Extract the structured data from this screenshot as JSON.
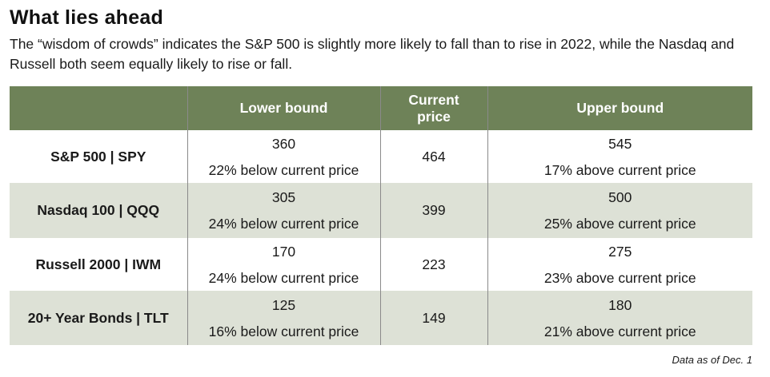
{
  "title": "What lies ahead",
  "subtitle": "The “wisdom of crowds” indicates the S&P 500 is slightly more likely to fall than to rise in 2022, while the Nasdaq and Russell both seem equally likely to rise or fall.",
  "table": {
    "headers": [
      "",
      "Lower bound",
      "Current price",
      "Upper bound"
    ],
    "rows": [
      {
        "name": "S&P 500 | SPY",
        "lower": "360",
        "lower_note": "22% below current price",
        "current": "464",
        "upper": "545",
        "upper_note": "17% above current price"
      },
      {
        "name": "Nasdaq 100 | QQQ",
        "lower": "305",
        "lower_note": "24% below current price",
        "current": "399",
        "upper": "500",
        "upper_note": "25% above current price"
      },
      {
        "name": "Russell 2000 | IWM",
        "lower": "170",
        "lower_note": "24% below current price",
        "current": "223",
        "upper": "275",
        "upper_note": "23% above current price"
      },
      {
        "name": "20+ Year Bonds | TLT",
        "lower": "125",
        "lower_note": "16% below current price",
        "current": "149",
        "upper": "180",
        "upper_note": "21% above current price"
      }
    ]
  },
  "footnote": "Data as of Dec. 1",
  "colors": {
    "header_bg": "#6e8258",
    "row_shade": "#dde1d6"
  }
}
